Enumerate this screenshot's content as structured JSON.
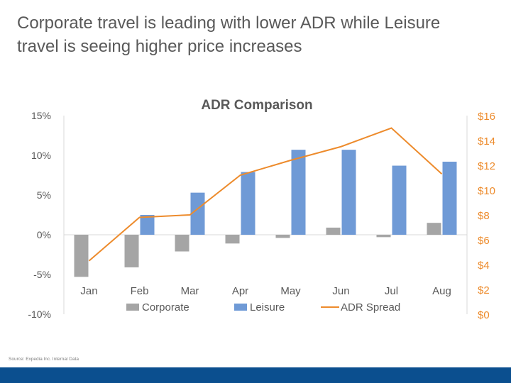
{
  "slide": {
    "title_line1": "Corporate travel is leading with lower ADR while Leisure",
    "title_line2": "travel is seeing higher price increases",
    "source": "Source: Expedia Inc. Internal Data"
  },
  "colors": {
    "corporate": "#a5a5a5",
    "leisure": "#6f9ad6",
    "spread": "#ed8b2c",
    "footer_bar": "#0b4f8f"
  },
  "chart_data": {
    "type": "bar",
    "title": "ADR Comparison",
    "categories": [
      "Jan",
      "Feb",
      "Mar",
      "Apr",
      "May",
      "Jun",
      "Jul",
      "Aug"
    ],
    "series": [
      {
        "name": "Corporate",
        "type": "bar",
        "axis": "left",
        "values": [
          -5.3,
          -4.1,
          -2.1,
          -1.1,
          -0.4,
          0.9,
          -0.3,
          1.5
        ]
      },
      {
        "name": "Leisure",
        "type": "bar",
        "axis": "left",
        "values": [
          0,
          2.5,
          5.3,
          7.9,
          10.7,
          10.7,
          8.7,
          9.2
        ]
      },
      {
        "name": "ADR Spread",
        "type": "line",
        "axis": "right",
        "values": [
          4.3,
          7.8,
          8.0,
          11.2,
          12.4,
          13.5,
          15.0,
          11.3
        ]
      }
    ],
    "y_left": {
      "min": -10,
      "max": 15,
      "step": 5,
      "ticks": [
        "-10%",
        "-5%",
        "0%",
        "5%",
        "10%",
        "15%"
      ]
    },
    "y_right": {
      "min": 0,
      "max": 16,
      "step": 2,
      "ticks": [
        "$0",
        "$2",
        "$4",
        "$6",
        "$8",
        "$10",
        "$12",
        "$14",
        "$16"
      ]
    },
    "legend": {
      "position": "bottom",
      "items": [
        "Corporate",
        "Leisure",
        "ADR Spread"
      ]
    },
    "grid": false
  }
}
